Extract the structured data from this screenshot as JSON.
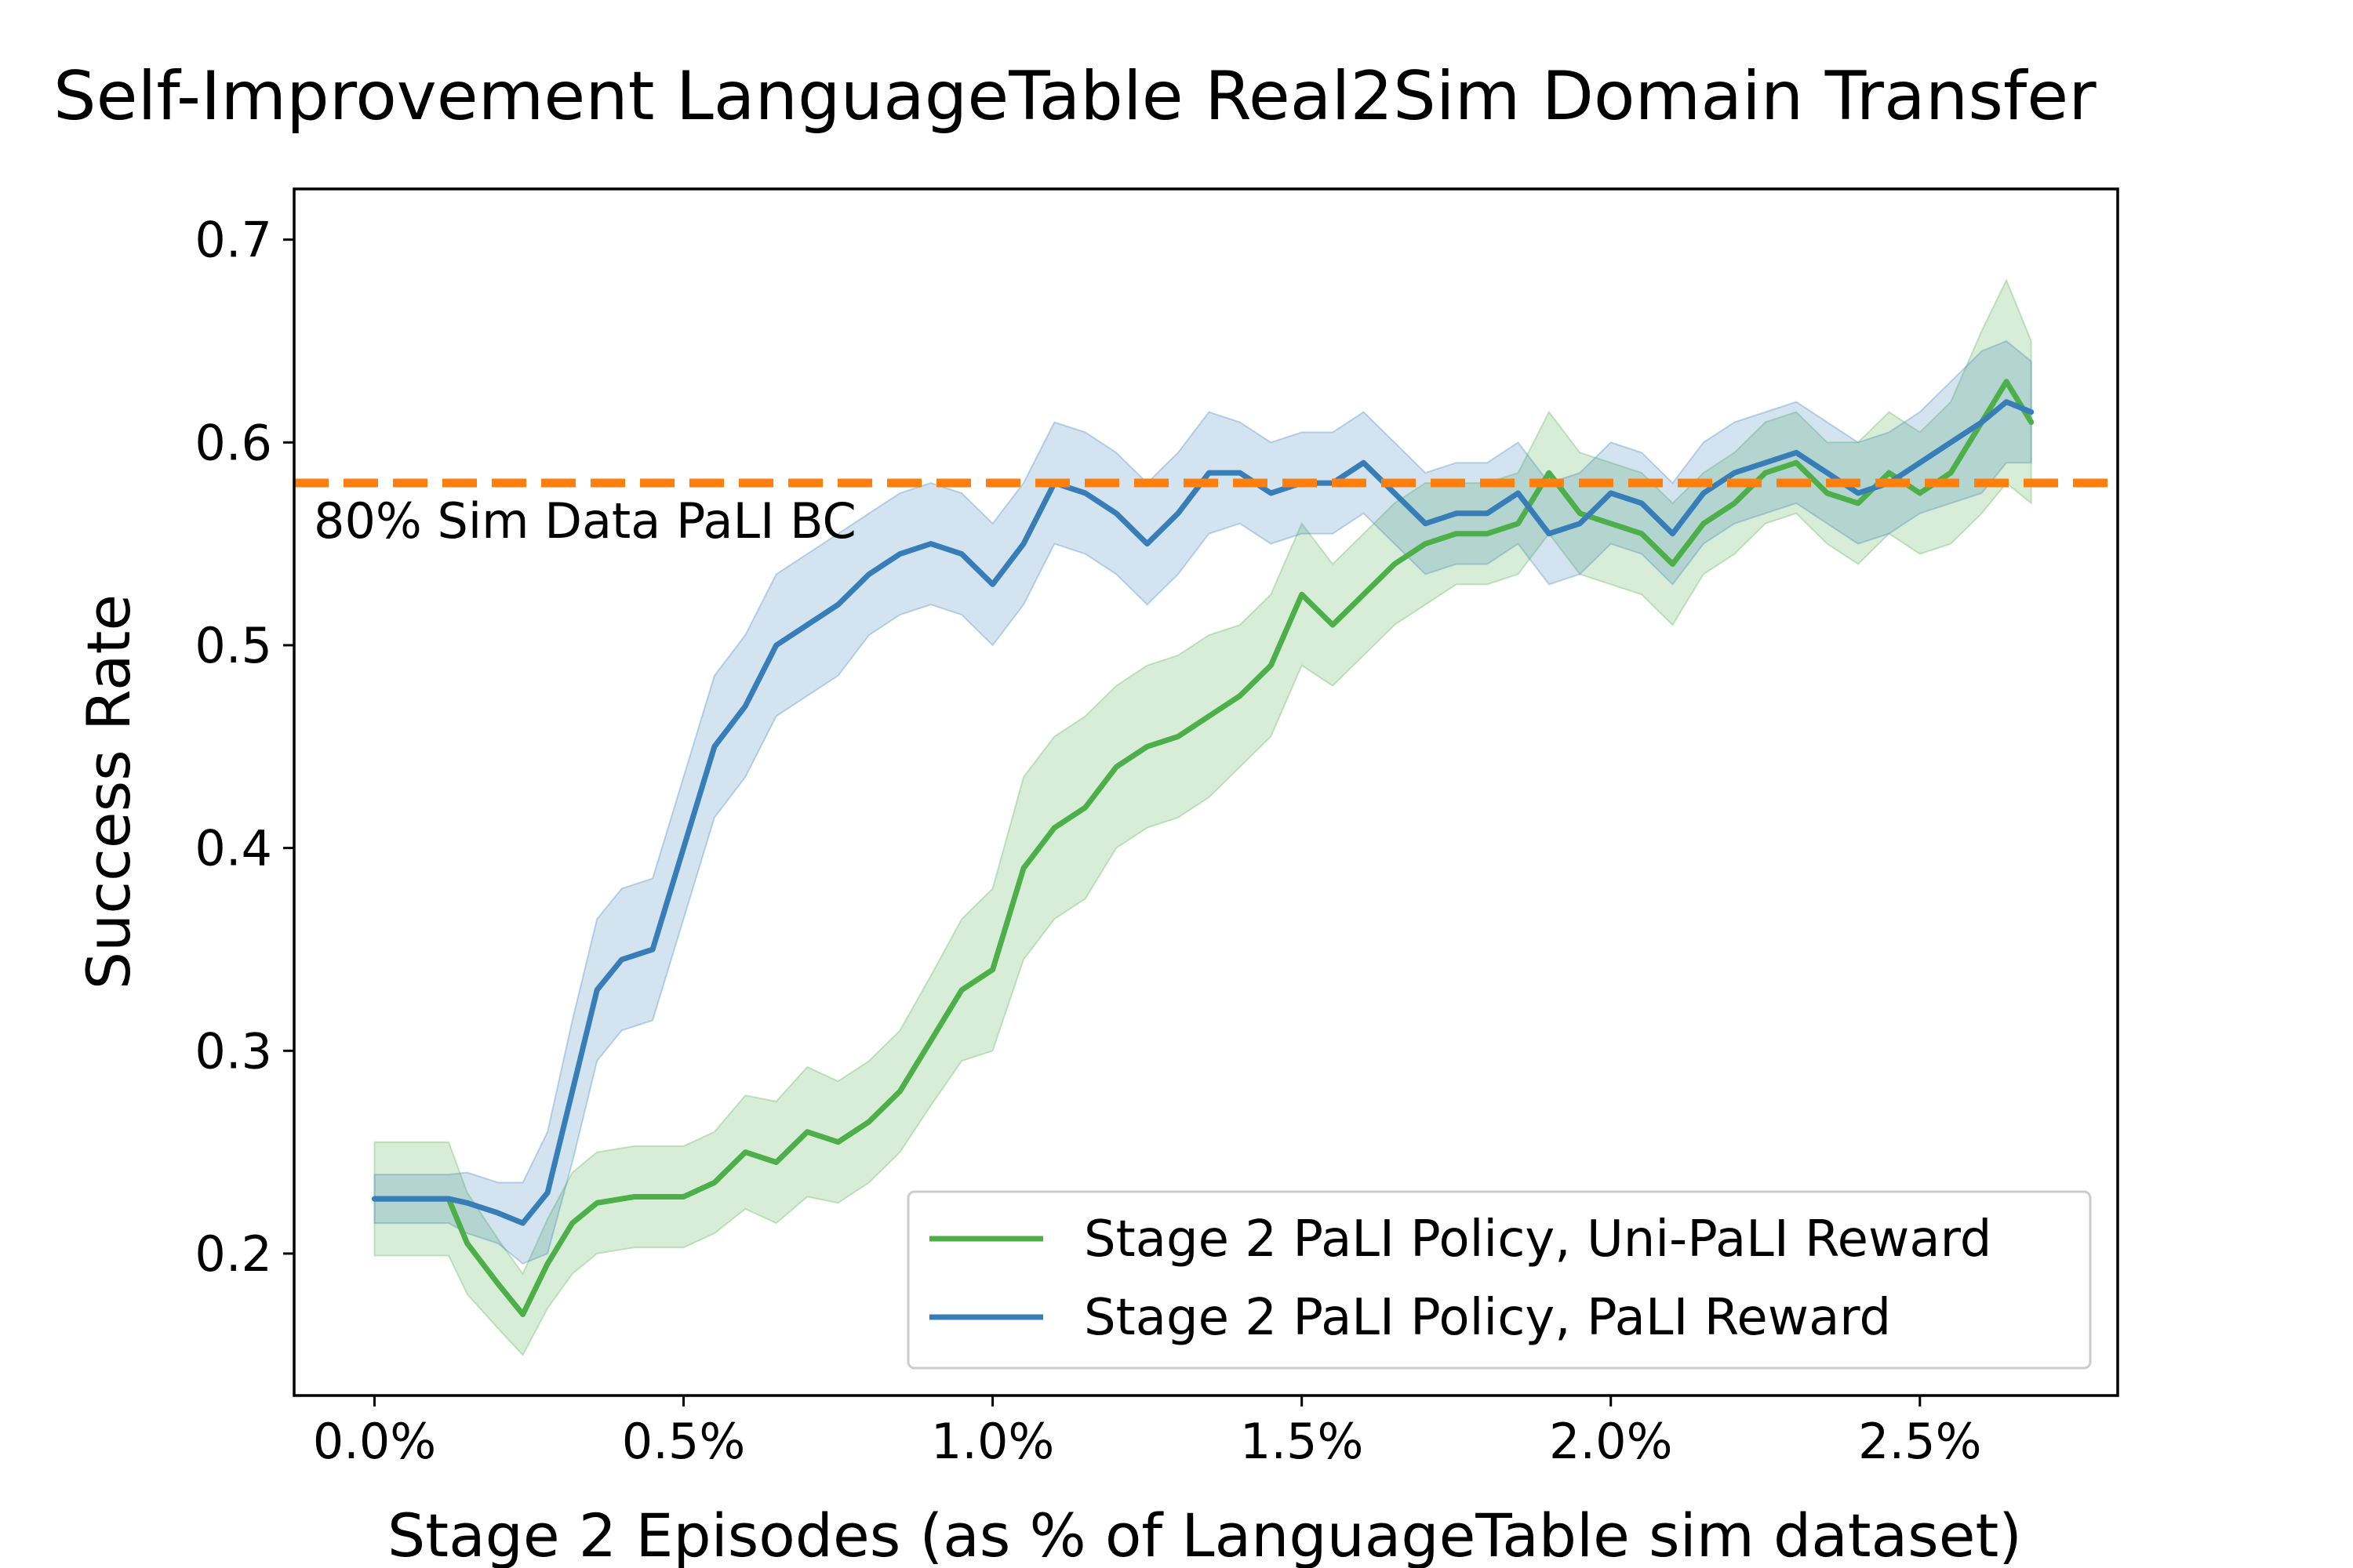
{
  "chart_data": {
    "type": "line",
    "title": "Self-Improvement LanguageTable Real2Sim Domain Transfer",
    "xlabel": "Stage 2 Episodes (as % of LanguageTable sim dataset)",
    "ylabel": "Success Rate",
    "xlim": [
      -0.13,
      2.82
    ],
    "ylim": [
      0.13,
      0.725
    ],
    "x_ticks": [
      0.0,
      0.5,
      1.0,
      1.5,
      2.0,
      2.5
    ],
    "x_tick_labels": [
      "0.0%",
      "0.5%",
      "1.0%",
      "1.5%",
      "2.0%",
      "2.5%"
    ],
    "y_ticks": [
      0.2,
      0.3,
      0.4,
      0.5,
      0.6,
      0.7
    ],
    "y_tick_labels": [
      "0.2",
      "0.3",
      "0.4",
      "0.5",
      "0.6",
      "0.7"
    ],
    "grid": false,
    "legend_position": "lower right",
    "baseline": {
      "label": "80% Sim Data PaLI BC",
      "value": 0.58,
      "color": "#ff7f0e",
      "style": "dashed"
    },
    "series": [
      {
        "name": "Stage 2 PaLI Policy, Uni-PaLI Reward",
        "color": "#4daf4a",
        "x": [
          0.0,
          0.12,
          0.15,
          0.2,
          0.24,
          0.28,
          0.32,
          0.36,
          0.42,
          0.5,
          0.55,
          0.6,
          0.65,
          0.7,
          0.75,
          0.8,
          0.85,
          0.9,
          0.95,
          1.0,
          1.05,
          1.1,
          1.15,
          1.2,
          1.25,
          1.3,
          1.35,
          1.4,
          1.45,
          1.5,
          1.55,
          1.6,
          1.65,
          1.7,
          1.75,
          1.8,
          1.85,
          1.9,
          1.95,
          2.0,
          2.05,
          2.1,
          2.15,
          2.2,
          2.25,
          2.3,
          2.35,
          2.4,
          2.45,
          2.5,
          2.55,
          2.6,
          2.64,
          2.68
        ],
        "values": [
          0.227,
          0.227,
          0.205,
          0.185,
          0.17,
          0.195,
          0.215,
          0.225,
          0.228,
          0.228,
          0.235,
          0.25,
          0.245,
          0.26,
          0.255,
          0.265,
          0.28,
          0.305,
          0.33,
          0.34,
          0.39,
          0.41,
          0.42,
          0.44,
          0.45,
          0.455,
          0.465,
          0.475,
          0.49,
          0.525,
          0.51,
          0.525,
          0.54,
          0.55,
          0.555,
          0.555,
          0.56,
          0.585,
          0.565,
          0.56,
          0.555,
          0.54,
          0.56,
          0.57,
          0.585,
          0.59,
          0.575,
          0.57,
          0.585,
          0.575,
          0.585,
          0.61,
          0.63,
          0.61
        ],
        "spread": [
          0.028,
          0.028,
          0.025,
          0.022,
          0.02,
          0.022,
          0.025,
          0.025,
          0.025,
          0.025,
          0.025,
          0.028,
          0.03,
          0.032,
          0.03,
          0.03,
          0.03,
          0.032,
          0.035,
          0.04,
          0.045,
          0.045,
          0.045,
          0.04,
          0.04,
          0.04,
          0.04,
          0.035,
          0.035,
          0.035,
          0.03,
          0.03,
          0.03,
          0.03,
          0.025,
          0.025,
          0.025,
          0.03,
          0.03,
          0.03,
          0.03,
          0.03,
          0.025,
          0.025,
          0.025,
          0.025,
          0.025,
          0.03,
          0.03,
          0.03,
          0.035,
          0.045,
          0.05,
          0.04
        ]
      },
      {
        "name": "Stage 2 PaLI Policy, PaLI Reward",
        "color": "#377eb8",
        "x": [
          0.0,
          0.12,
          0.15,
          0.2,
          0.24,
          0.28,
          0.32,
          0.36,
          0.4,
          0.45,
          0.5,
          0.55,
          0.6,
          0.65,
          0.7,
          0.75,
          0.8,
          0.85,
          0.9,
          0.95,
          1.0,
          1.05,
          1.1,
          1.15,
          1.2,
          1.25,
          1.3,
          1.35,
          1.4,
          1.45,
          1.5,
          1.55,
          1.6,
          1.65,
          1.7,
          1.75,
          1.8,
          1.85,
          1.9,
          1.95,
          2.0,
          2.05,
          2.1,
          2.15,
          2.2,
          2.25,
          2.3,
          2.35,
          2.4,
          2.45,
          2.5,
          2.55,
          2.6,
          2.64,
          2.68
        ],
        "values": [
          0.227,
          0.227,
          0.225,
          0.22,
          0.215,
          0.23,
          0.28,
          0.33,
          0.345,
          0.35,
          0.4,
          0.45,
          0.47,
          0.5,
          0.51,
          0.52,
          0.535,
          0.545,
          0.55,
          0.545,
          0.53,
          0.55,
          0.58,
          0.575,
          0.565,
          0.55,
          0.565,
          0.585,
          0.585,
          0.575,
          0.58,
          0.58,
          0.59,
          0.575,
          0.56,
          0.565,
          0.565,
          0.575,
          0.555,
          0.56,
          0.575,
          0.57,
          0.555,
          0.575,
          0.585,
          0.59,
          0.595,
          0.585,
          0.575,
          0.58,
          0.59,
          0.6,
          0.61,
          0.62,
          0.615
        ],
        "spread": [
          0.012,
          0.012,
          0.015,
          0.015,
          0.02,
          0.03,
          0.035,
          0.035,
          0.035,
          0.035,
          0.035,
          0.035,
          0.035,
          0.035,
          0.035,
          0.035,
          0.03,
          0.03,
          0.03,
          0.03,
          0.03,
          0.03,
          0.03,
          0.03,
          0.03,
          0.03,
          0.03,
          0.03,
          0.025,
          0.025,
          0.025,
          0.025,
          0.025,
          0.025,
          0.025,
          0.025,
          0.025,
          0.025,
          0.025,
          0.025,
          0.025,
          0.025,
          0.025,
          0.025,
          0.025,
          0.025,
          0.025,
          0.025,
          0.025,
          0.025,
          0.025,
          0.03,
          0.035,
          0.03,
          0.025
        ]
      }
    ]
  }
}
